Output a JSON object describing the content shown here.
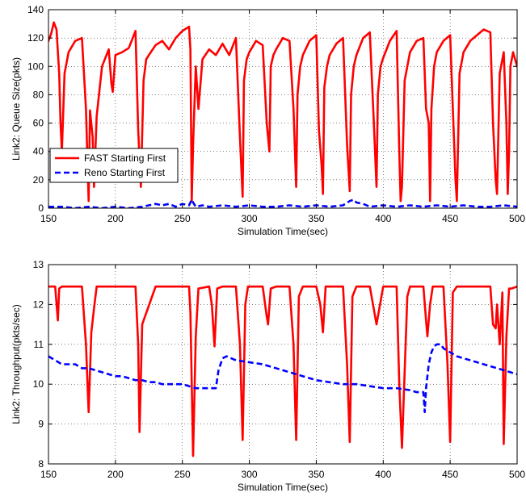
{
  "chart_data": [
    {
      "type": "line",
      "xlabel": "Simulation Time(sec)",
      "ylabel": "Link2: Queue Size(pkts)",
      "xlim": [
        150,
        500
      ],
      "ylim": [
        0,
        140
      ],
      "xticks": [
        150,
        200,
        250,
        300,
        350,
        400,
        450,
        500
      ],
      "yticks": [
        0,
        20,
        40,
        60,
        80,
        100,
        120,
        140
      ],
      "grid": true,
      "legend_position": "lower-left",
      "series": [
        {
          "name": "FAST Starting First",
          "color": "#ff0000",
          "style": "solid",
          "x": [
            150,
            152,
            154,
            156,
            158,
            159,
            160,
            162,
            165,
            170,
            175,
            178,
            180,
            181,
            183,
            184,
            186,
            190,
            195,
            197,
            198,
            200,
            205,
            210,
            215,
            217,
            219,
            221,
            223,
            225,
            230,
            235,
            240,
            245,
            250,
            255,
            256,
            257,
            258,
            260,
            262,
            265,
            270,
            275,
            280,
            285,
            290,
            293,
            295,
            296,
            298,
            300,
            305,
            310,
            313,
            315,
            316,
            318,
            320,
            325,
            330,
            333,
            335,
            336,
            338,
            340,
            345,
            350,
            352,
            354,
            355,
            356,
            358,
            360,
            365,
            370,
            373,
            375,
            376,
            378,
            380,
            385,
            390,
            393,
            395,
            396,
            398,
            400,
            405,
            410,
            412,
            413,
            414,
            416,
            420,
            425,
            430,
            432,
            434,
            435,
            436,
            438,
            440,
            445,
            450,
            452,
            454,
            455,
            457,
            460,
            465,
            470,
            475,
            480,
            482,
            484,
            485,
            487,
            490,
            492,
            493,
            494,
            495,
            497,
            500
          ],
          "y": [
            118,
            123,
            131,
            126,
            95,
            60,
            40,
            95,
            110,
            118,
            120,
            70,
            5,
            69,
            50,
            15,
            65,
            100,
            112,
            88,
            82,
            108,
            110,
            113,
            125,
            55,
            15,
            90,
            105,
            108,
            115,
            118,
            112,
            120,
            125,
            128,
            112,
            5,
            45,
            100,
            70,
            105,
            112,
            108,
            116,
            108,
            120,
            50,
            8,
            90,
            105,
            110,
            118,
            115,
            60,
            40,
            100,
            108,
            112,
            120,
            118,
            70,
            15,
            80,
            100,
            108,
            118,
            122,
            55,
            30,
            10,
            85,
            100,
            108,
            116,
            120,
            45,
            12,
            80,
            100,
            108,
            120,
            124,
            60,
            15,
            80,
            100,
            106,
            118,
            125,
            40,
            5,
            15,
            90,
            110,
            118,
            120,
            70,
            60,
            5,
            70,
            100,
            110,
            118,
            122,
            70,
            20,
            5,
            95,
            110,
            118,
            122,
            126,
            124,
            60,
            20,
            10,
            95,
            110,
            60,
            10,
            40,
            100,
            110,
            100
          ]
        },
        {
          "name": "Reno Starting First",
          "color": "#0000ff",
          "style": "dashed",
          "x": [
            150,
            160,
            170,
            180,
            190,
            200,
            210,
            220,
            225,
            230,
            235,
            240,
            245,
            250,
            255,
            257,
            258,
            260,
            265,
            270,
            280,
            290,
            300,
            310,
            320,
            330,
            340,
            350,
            360,
            370,
            375,
            378,
            380,
            385,
            390,
            400,
            410,
            420,
            430,
            440,
            450,
            460,
            470,
            480,
            490,
            500
          ],
          "y": [
            1,
            1,
            0,
            1,
            0,
            1,
            0,
            1,
            2,
            3,
            2,
            3,
            1,
            3,
            2,
            6,
            4,
            1,
            2,
            1,
            2,
            1,
            2,
            1,
            1,
            2,
            1,
            2,
            1,
            2,
            5,
            6,
            4,
            3,
            1,
            2,
            1,
            2,
            1,
            2,
            1,
            2,
            1,
            1,
            2,
            1
          ]
        }
      ]
    },
    {
      "type": "line",
      "xlabel": "Simulation Time(sec)",
      "ylabel": "Link2: Throughput(pkts/sec)",
      "xlim": [
        150,
        500
      ],
      "ylim": [
        8,
        13
      ],
      "xticks": [
        150,
        200,
        250,
        300,
        350,
        400,
        450,
        500
      ],
      "yticks": [
        8,
        9,
        10,
        11,
        12,
        13
      ],
      "grid": true,
      "series": [
        {
          "name": "FAST Starting First",
          "color": "#ff0000",
          "style": "solid",
          "x": [
            150,
            155,
            157,
            158,
            160,
            170,
            175,
            178,
            180,
            182,
            184,
            186,
            190,
            200,
            210,
            215,
            217,
            218,
            220,
            230,
            240,
            250,
            255,
            256,
            258,
            260,
            262,
            270,
            272,
            274,
            276,
            280,
            290,
            293,
            295,
            297,
            299,
            302,
            310,
            313,
            314,
            316,
            320,
            330,
            333,
            335,
            337,
            340,
            350,
            353,
            355,
            357,
            360,
            370,
            373,
            375,
            377,
            380,
            390,
            395,
            400,
            405,
            410,
            412,
            414,
            418,
            420,
            430,
            432,
            433,
            435,
            437,
            440,
            445,
            448,
            450,
            452,
            455,
            460,
            470,
            480,
            482,
            484,
            485,
            487,
            489,
            490,
            492,
            494,
            496,
            500
          ],
          "y": [
            12.45,
            12.45,
            11.6,
            12.4,
            12.45,
            12.45,
            12.45,
            11.0,
            9.3,
            11.3,
            11.9,
            12.45,
            12.45,
            12.45,
            12.45,
            12.45,
            11.0,
            8.8,
            11.5,
            12.45,
            12.45,
            12.45,
            12.45,
            11.8,
            8.2,
            11.2,
            12.4,
            12.45,
            12.0,
            10.95,
            12.4,
            12.45,
            12.45,
            11.0,
            8.6,
            12.0,
            12.45,
            12.45,
            12.45,
            11.7,
            11.5,
            12.4,
            12.45,
            12.45,
            11.0,
            8.6,
            12.2,
            12.45,
            12.45,
            12.0,
            11.3,
            12.45,
            12.45,
            12.45,
            10.5,
            8.55,
            12.2,
            12.45,
            12.45,
            11.5,
            12.45,
            12.45,
            12.45,
            10.0,
            8.4,
            12.2,
            12.45,
            12.45,
            11.6,
            11.2,
            12.0,
            12.45,
            12.45,
            12.45,
            10.5,
            8.55,
            12.3,
            12.45,
            12.45,
            12.45,
            12.45,
            11.5,
            11.4,
            12.0,
            11.0,
            12.3,
            8.5,
            11.2,
            12.4,
            12.4,
            12.45
          ]
        },
        {
          "name": "Reno Starting First",
          "color": "#0000ff",
          "style": "dashed",
          "x": [
            150,
            155,
            160,
            170,
            175,
            180,
            185,
            190,
            195,
            200,
            205,
            210,
            215,
            220,
            225,
            230,
            235,
            240,
            245,
            250,
            260,
            270,
            275,
            277,
            280,
            283,
            290,
            300,
            310,
            320,
            330,
            340,
            350,
            360,
            370,
            380,
            390,
            400,
            410,
            420,
            425,
            430,
            431,
            432,
            434,
            436,
            438,
            440,
            443,
            445,
            450,
            455,
            460,
            465,
            470,
            475,
            480,
            485,
            490,
            495,
            500
          ],
          "y": [
            10.7,
            10.6,
            10.5,
            10.5,
            10.4,
            10.4,
            10.35,
            10.3,
            10.25,
            10.2,
            10.2,
            10.15,
            10.1,
            10.1,
            10.05,
            10.05,
            10.0,
            10.0,
            10.0,
            10.0,
            9.9,
            9.9,
            9.9,
            10.35,
            10.65,
            10.7,
            10.6,
            10.55,
            10.5,
            10.4,
            10.3,
            10.2,
            10.1,
            10.05,
            10.0,
            10.0,
            9.95,
            9.9,
            9.9,
            9.85,
            9.8,
            9.8,
            9.3,
            9.9,
            10.5,
            10.8,
            10.95,
            11.0,
            11.0,
            10.9,
            10.8,
            10.7,
            10.65,
            10.6,
            10.55,
            10.5,
            10.45,
            10.4,
            10.35,
            10.3,
            10.25
          ]
        }
      ]
    }
  ]
}
